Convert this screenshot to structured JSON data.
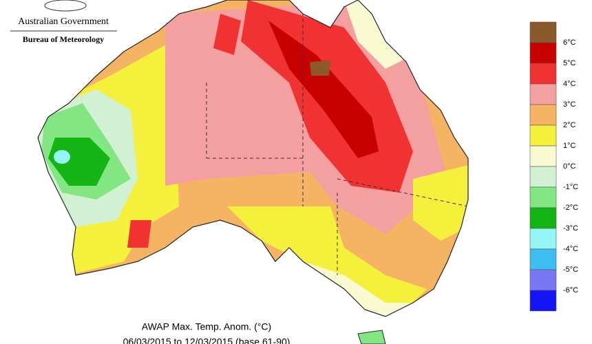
{
  "header": {
    "agency": "Australian Government",
    "bureau": "Bureau of Meteorology"
  },
  "map": {
    "title": "AWAP Max. Temp. Anom. (°C)",
    "subtitle": "06/03/2015 to 12/03/2015 (base 61-90)"
  },
  "legend": {
    "labels": [
      "6°C",
      "5°C",
      "4°C",
      "3°C",
      "2°C",
      "1°C",
      "0°C",
      "-1°C",
      "-2°C",
      "-3°C",
      "-4°C",
      "-5°C",
      "-6°C"
    ],
    "colors": [
      "#8b5a2b",
      "#c80000",
      "#f03232",
      "#f5a0a0",
      "#f5b464",
      "#f5f03c",
      "#fafad2",
      "#d2f0d2",
      "#82e682",
      "#14b414",
      "#96f5f5",
      "#3cbef0",
      "#7878f5",
      "#1414f5"
    ]
  }
}
